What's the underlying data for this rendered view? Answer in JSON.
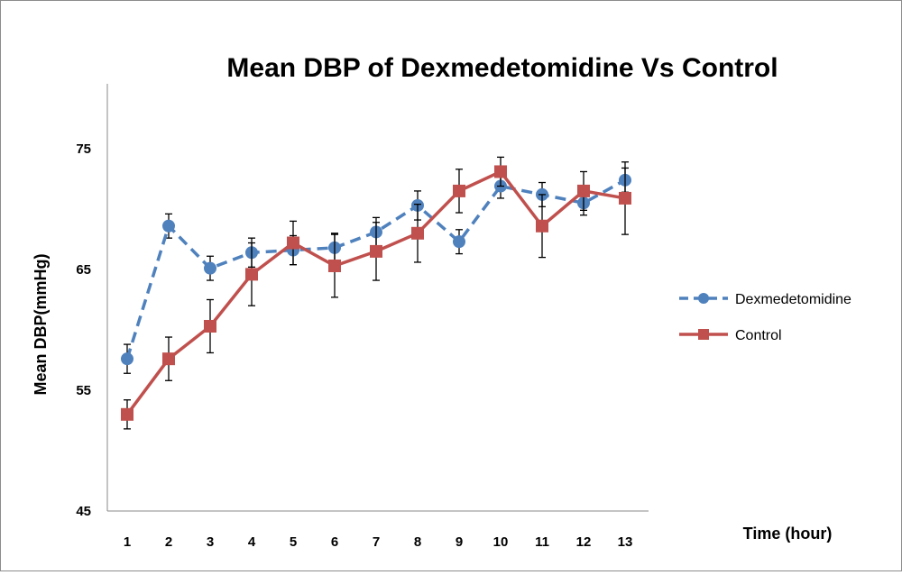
{
  "chart_data": {
    "type": "line",
    "title": "Mean DBP of Dexmedetomidine Vs Control",
    "xlabel": "Time (hour)",
    "ylabel": "Mean DBP(mmHg)",
    "categories": [
      "1",
      "2",
      "3",
      "4",
      "5",
      "6",
      "7",
      "8",
      "9",
      "10",
      "11",
      "12",
      "13"
    ],
    "y_ticks": [
      "45",
      "55",
      "65",
      "75"
    ],
    "ylim": [
      45,
      80
    ],
    "grid": false,
    "legend_position": "right",
    "series": [
      {
        "name": "Dexmedetomidine",
        "color": "#4f81bd",
        "line_style": "dashed",
        "marker": "circle",
        "values": [
          57.6,
          68.6,
          65.1,
          66.4,
          66.6,
          66.8,
          68.1,
          70.3,
          67.3,
          71.9,
          71.2,
          70.5,
          72.4
        ],
        "error": [
          1.2,
          1.0,
          1.0,
          1.2,
          1.2,
          1.2,
          1.2,
          1.2,
          1.0,
          1.0,
          1.0,
          1.0,
          1.0
        ]
      },
      {
        "name": "Control",
        "color": "#c0504d",
        "line_style": "solid",
        "marker": "square",
        "values": [
          53.0,
          57.6,
          60.3,
          64.6,
          67.2,
          65.3,
          66.5,
          68.0,
          71.5,
          73.1,
          68.6,
          71.5,
          70.9
        ],
        "error": [
          1.2,
          1.8,
          2.2,
          2.6,
          1.8,
          2.6,
          2.4,
          2.4,
          1.8,
          1.2,
          2.6,
          1.6,
          3.0
        ]
      }
    ]
  }
}
